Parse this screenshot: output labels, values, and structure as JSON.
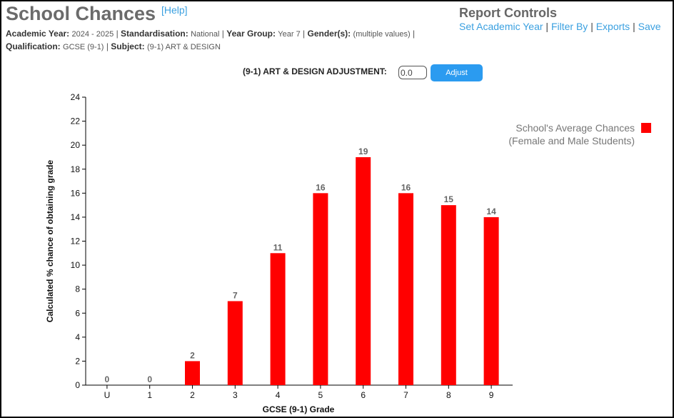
{
  "page": {
    "title": "School Chances",
    "help": "[Help]"
  },
  "filters": {
    "academic_year_label": "Academic Year:",
    "academic_year_value": "2024 - 2025",
    "standardisation_label": "Standardisation:",
    "standardisation_value": "National",
    "year_group_label": "Year Group:",
    "year_group_value": "Year 7",
    "gender_label": "Gender(s):",
    "gender_value": "(multiple values)",
    "qualification_label": "Qualification:",
    "qualification_value": "GCSE (9-1)",
    "subject_label": "Subject:",
    "subject_value": "(9-1) ART & DESIGN",
    "separator": "|"
  },
  "report_controls": {
    "title": "Report Controls",
    "links": [
      "Set Academic Year",
      "Filter By",
      "Exports",
      "Save"
    ],
    "separator": "|"
  },
  "adjustment": {
    "label": "(9-1) ART & DESIGN ADJUSTMENT:",
    "value": "0.0",
    "button": "Adjust"
  },
  "colors": {
    "bar": "#ff0000",
    "link": "#3aa0e0",
    "button": "#2b9bf0"
  },
  "chart_data": {
    "type": "bar",
    "categories": [
      "U",
      "1",
      "2",
      "3",
      "4",
      "5",
      "6",
      "7",
      "8",
      "9"
    ],
    "series": [
      {
        "name": "School's Average Chances (Female and Male Students)",
        "legend_lines": [
          "School's Average Chances",
          "(Female and Male Students)"
        ],
        "values": [
          0,
          0,
          2,
          7,
          11,
          16,
          19,
          16,
          15,
          14
        ]
      }
    ],
    "data_labels": [
      "0",
      "0",
      "2",
      "7",
      "11",
      "16",
      "19",
      "16",
      "15",
      "14"
    ],
    "xlabel": "GCSE (9-1) Grade",
    "ylabel": "Calculated % chance of obtaining grade",
    "ylim": [
      0,
      24
    ],
    "yticks": [
      0,
      2,
      4,
      6,
      8,
      10,
      12,
      14,
      16,
      18,
      20,
      22,
      24
    ],
    "grid": false,
    "legend_position": "top-right"
  }
}
